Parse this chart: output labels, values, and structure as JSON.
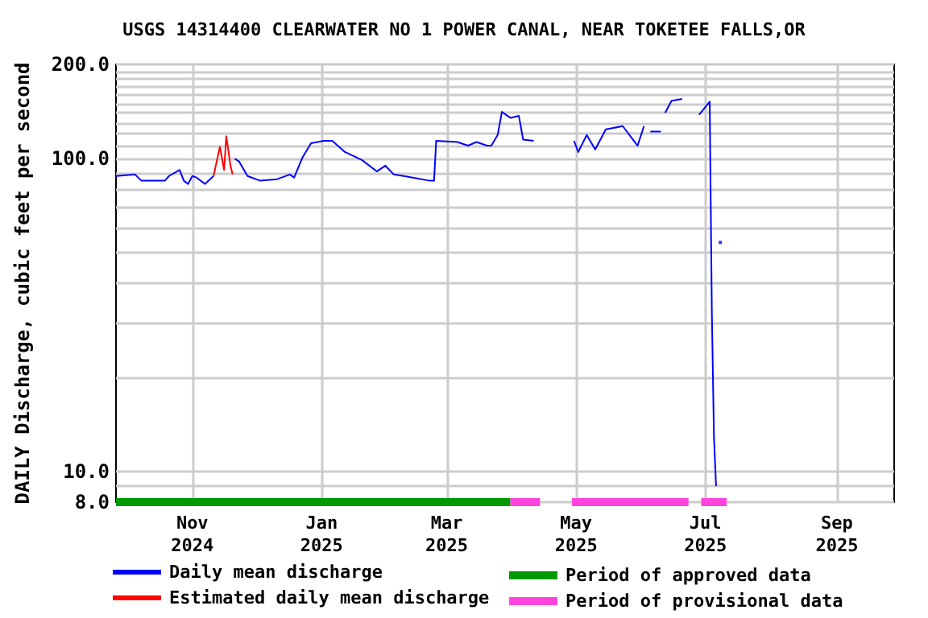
{
  "chart_data": {
    "type": "line",
    "title": "USGS 14314400 CLEARWATER NO 1 POWER CANAL, NEAR TOKETEE FALLS,OR",
    "ylabel": "DAILY Discharge, cubic feet per second",
    "log": "y",
    "grid": true,
    "legend": "bottom",
    "xlim": [
      "2024-09-26",
      "2025-09-28"
    ],
    "xticks": [
      {
        "value": "2024-11-01",
        "label": "Nov\n2024"
      },
      {
        "value": "2025-01-01",
        "label": "Jan\n2025"
      },
      {
        "value": "2025-03-01",
        "label": "Mar\n2025"
      },
      {
        "value": "2025-05-01",
        "label": "May\n2025"
      },
      {
        "value": "2025-07-01",
        "label": "Jul\n2025"
      },
      {
        "value": "2025-09-01",
        "label": "Sep\n2025"
      }
    ],
    "ylim": [
      8,
      200
    ],
    "yticks": [
      {
        "value": 8,
        "label": "8.0"
      },
      {
        "value": 9,
        "label": null
      },
      {
        "value": 10,
        "label": "10.0"
      },
      {
        "value": 20,
        "label": null
      },
      {
        "value": 30,
        "label": null
      },
      {
        "value": 40,
        "label": null
      },
      {
        "value": 50,
        "label": null
      },
      {
        "value": 60,
        "label": null
      },
      {
        "value": 70,
        "label": null
      },
      {
        "value": 80,
        "label": null
      },
      {
        "value": 90,
        "label": null
      },
      {
        "value": 100,
        "label": "100.0"
      },
      {
        "value": 110,
        "label": null
      },
      {
        "value": 120,
        "label": null
      },
      {
        "value": 130,
        "label": null
      },
      {
        "value": 140,
        "label": null
      },
      {
        "value": 150,
        "label": null
      },
      {
        "value": 160,
        "label": null
      },
      {
        "value": 170,
        "label": null
      },
      {
        "value": 180,
        "label": null
      },
      {
        "value": 190,
        "label": null
      },
      {
        "value": 200,
        "label": "200.0"
      }
    ],
    "series": [
      {
        "name": "Daily mean discharge",
        "color": "#0000ff",
        "x": [
          "2024-09-26",
          "2024-10-05",
          "2024-10-08",
          "2024-10-19",
          "2024-10-21",
          "2024-10-26",
          "2024-10-28",
          "2024-10-30",
          "2024-11-01",
          "2024-11-03",
          "2024-11-07",
          "2024-11-11",
          "2024-11-15",
          "2024-11-21",
          "2024-11-23",
          "2024-11-27",
          "2024-12-03",
          "2024-12-11",
          "2024-12-17",
          "2024-12-19",
          "2024-12-23",
          "2024-12-27",
          "2025-01-02",
          "2025-01-06",
          "2025-01-12",
          "2025-01-20",
          "2025-01-27",
          "2025-01-31",
          "2025-02-04",
          "2025-02-13",
          "2025-02-21",
          "2025-02-23",
          "2025-02-24",
          "2025-03-06",
          "2025-03-11",
          "2025-03-15",
          "2025-03-20",
          "2025-03-22",
          "2025-03-25",
          "2025-03-27",
          "2025-03-31",
          "2025-04-04",
          "2025-04-06",
          "2025-04-11",
          "2025-04-20",
          "2025-04-30",
          "2025-05-02",
          "2025-05-06",
          "2025-05-10",
          "2025-05-15",
          "2025-05-23",
          "2025-05-30",
          "2025-06-02",
          "2025-06-04",
          "2025-06-05",
          "2025-06-10",
          "2025-06-11",
          "2025-06-12",
          "2025-06-15",
          "2025-06-20",
          "2025-06-24",
          "2025-06-28",
          "2025-07-03",
          "2025-07-04",
          "2025-07-05",
          "2025-07-06"
        ],
        "values": [
          88,
          89,
          85,
          85,
          88,
          92,
          85,
          83,
          88,
          87,
          83,
          88,
          null,
          100,
          98,
          88,
          85,
          86,
          89,
          87,
          101,
          112,
          114,
          114,
          105,
          99,
          91,
          95,
          89,
          87,
          85,
          85,
          114,
          113,
          110,
          113,
          110,
          110,
          119,
          141,
          135,
          137,
          115,
          114,
          null,
          114,
          105,
          119,
          107,
          124,
          127,
          110,
          127,
          null,
          122,
          122,
          null,
          140,
          153,
          155,
          null,
          138,
          152,
          33,
          13,
          9
        ]
      },
      {
        "name": "Estimated daily mean discharge",
        "color": "#ff0000",
        "x": [
          "2024-11-11",
          "2024-11-14",
          "2024-11-16",
          "2024-11-17",
          "2024-11-19",
          "2024-11-20"
        ],
        "values": [
          88,
          109,
          92,
          118,
          95,
          89
        ]
      },
      {
        "type": "scatter",
        "color": "#0000ff",
        "marker": "square",
        "x": [
          "2025-07-08"
        ],
        "values": [
          54
        ]
      },
      {
        "name": "Period of approved data",
        "color": "#009900",
        "x": [
          "2024-09-26",
          "2025-03-31"
        ],
        "values": [
          8,
          8
        ]
      },
      {
        "name": "Period of provisional data",
        "color": "#ff44dd",
        "x": [
          "2025-03-31",
          "2025-04-14",
          "2025-04-20",
          "2025-04-29",
          "2025-06-23",
          "2025-06-26",
          "2025-06-29",
          "2025-07-11"
        ],
        "values": [
          8,
          8,
          null,
          8,
          8,
          null,
          8,
          8
        ]
      }
    ]
  }
}
